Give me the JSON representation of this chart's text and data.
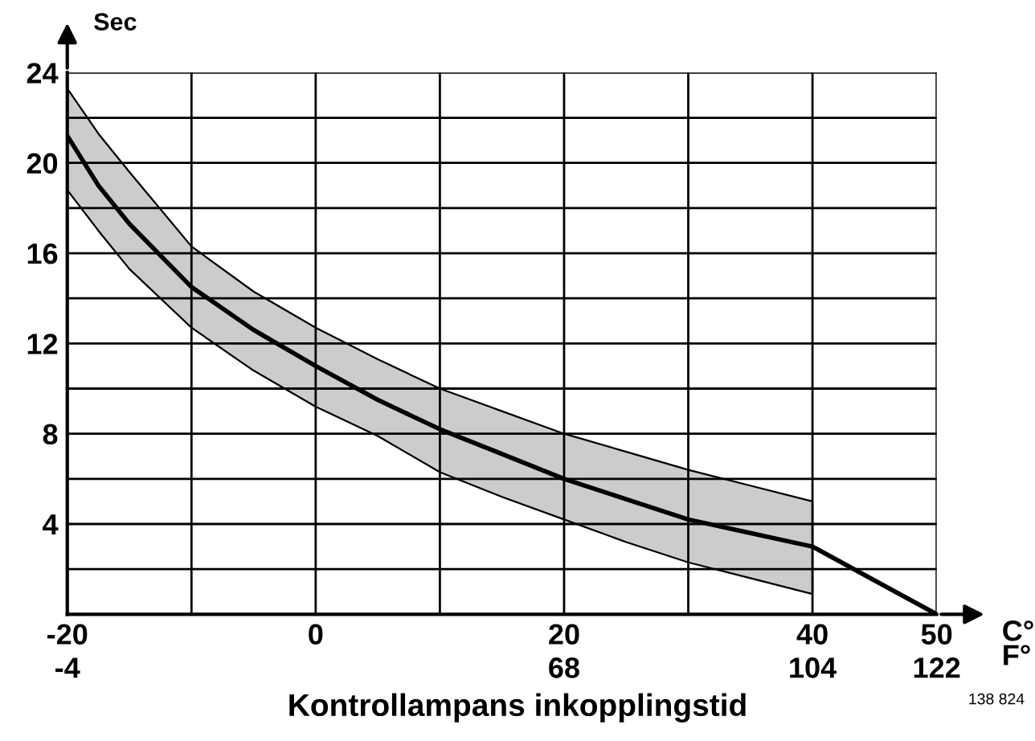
{
  "chart_data": {
    "type": "line",
    "title": "Kontrollampans inkopplingstid",
    "xlabel": "C°",
    "x2label": "F°",
    "ylabel": "Sec",
    "annotations": [
      "138 824"
    ],
    "series": [
      {
        "color": "#000000",
        "x": [
          -20,
          -17.5,
          -15,
          -10,
          -5,
          0,
          5,
          10,
          15,
          20,
          25,
          30,
          35,
          40,
          45,
          50
        ],
        "values": [
          21.2,
          19,
          17.3,
          14.5,
          12.6,
          11,
          9.5,
          8.2,
          7.1,
          6,
          5.1,
          4.2,
          3.6,
          3,
          1.5,
          0
        ],
        "lower": [
          18.8,
          17,
          15.3,
          12.7,
          10.8,
          9.2,
          7.9,
          6.3,
          5.2,
          4.2,
          3.2,
          2.3,
          1.6,
          0.9,
          null,
          null
        ],
        "upper": [
          23.3,
          21.3,
          19.6,
          16.3,
          14.3,
          12.7,
          11.3,
          10,
          9,
          8,
          7.2,
          6.4,
          5.7,
          5,
          null,
          null
        ]
      }
    ],
    "xlim": [
      -20,
      50
    ],
    "ylim": [
      0,
      24
    ],
    "xticks": [
      -20,
      {
        "value": -10,
        "label": null
      },
      0,
      {
        "value": 10,
        "label": null
      },
      20,
      {
        "value": 30,
        "label": null
      },
      40,
      50
    ],
    "x2lim": [
      -4,
      122
    ],
    "x2ticks": [
      -4,
      68,
      104,
      122
    ],
    "yticks": [
      {
        "value": 0,
        "label": null
      },
      {
        "value": 2,
        "label": null
      },
      4,
      {
        "value": 6,
        "label": null
      },
      8,
      {
        "value": 10,
        "label": null
      },
      12,
      {
        "value": 14,
        "label": null
      },
      16,
      {
        "value": 18,
        "label": null
      },
      20,
      {
        "value": 22,
        "label": null
      },
      24
    ],
    "grid": true,
    "legend": false,
    "marker": "none",
    "line_style": "solid"
  }
}
